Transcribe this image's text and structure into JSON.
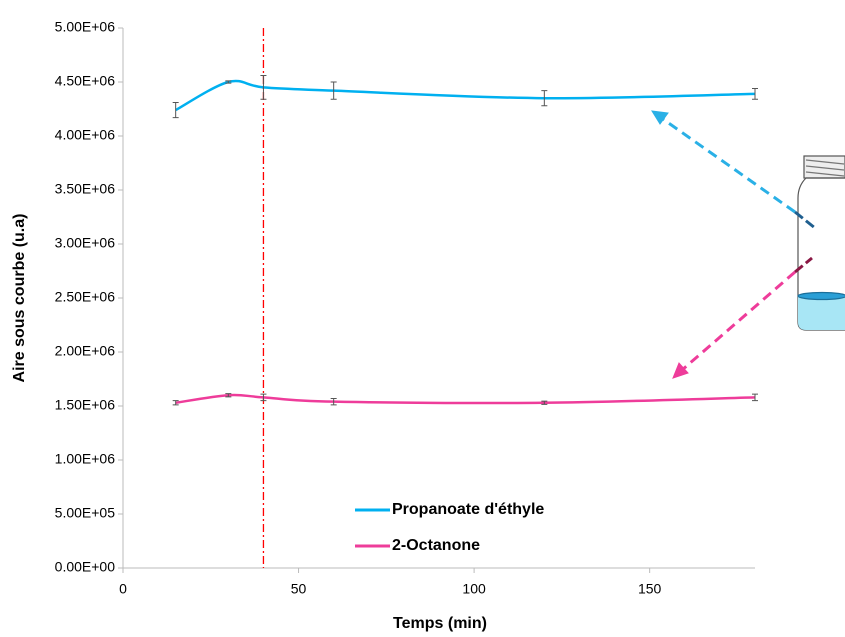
{
  "chart_data": {
    "type": "line",
    "x_label": "Temps (min)",
    "y_label": "Aire sous courbe (u.a)",
    "x": [
      15,
      30,
      40,
      60,
      120,
      180
    ],
    "series": [
      {
        "name": "Propanoate d'éthyle",
        "color": "#00b0f0",
        "values": [
          4240000,
          4500000,
          4450000,
          4420000,
          4350000,
          4390000
        ],
        "errors": [
          70000,
          10000,
          110000,
          80000,
          70000,
          50000
        ]
      },
      {
        "name": "2-Octanone",
        "color": "#ee3c9a",
        "values": [
          1530000,
          1600000,
          1580000,
          1540000,
          1530000,
          1580000
        ],
        "errors": [
          20000,
          15000,
          30000,
          30000,
          15000,
          30000
        ]
      }
    ],
    "xlim": [
      0,
      180
    ],
    "xticks": [
      0,
      50,
      100,
      150
    ],
    "ylim": [
      0,
      5000000
    ],
    "yticks": [
      {
        "value": 0,
        "label": "0.00E+00"
      },
      {
        "value": 500000,
        "label": "5.00E+05"
      },
      {
        "value": 1000000,
        "label": "1.00E+06"
      },
      {
        "value": 1500000,
        "label": "1.50E+06"
      },
      {
        "value": 2000000,
        "label": "2.00E+06"
      },
      {
        "value": 2500000,
        "label": "2.50E+06"
      },
      {
        "value": 3000000,
        "label": "3.00E+06"
      },
      {
        "value": 3500000,
        "label": "3.50E+06"
      },
      {
        "value": 4000000,
        "label": "4.00E+06"
      },
      {
        "value": 4500000,
        "label": "4.50E+06"
      },
      {
        "value": 5000000,
        "label": "5.00E+06"
      }
    ],
    "reference_line": {
      "x": 40,
      "color": "#ff0000"
    },
    "grid": false,
    "legend": "bottom"
  }
}
